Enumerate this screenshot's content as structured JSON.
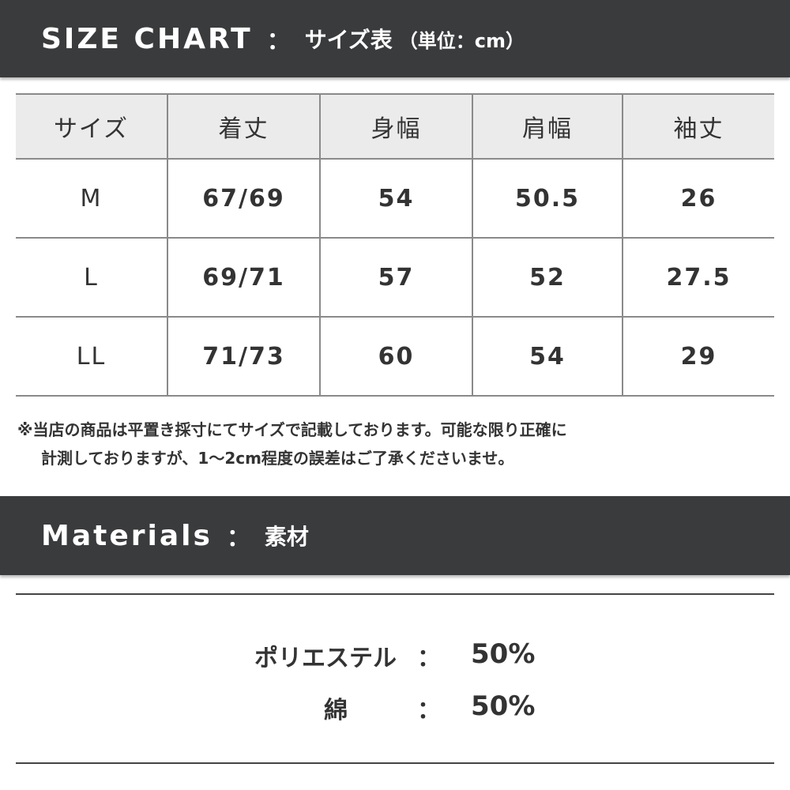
{
  "size_chart": {
    "title_en": "SIZE CHART",
    "colon": "：",
    "title_jp": "サイズ表",
    "unit": "（単位：cm）",
    "headers": [
      "サイズ",
      "着丈",
      "身幅",
      "肩幅",
      "袖丈"
    ],
    "rows": [
      [
        "M",
        "67/69",
        "54",
        "50.5",
        "26"
      ],
      [
        "L",
        "69/71",
        "57",
        "52",
        "27.5"
      ],
      [
        "LL",
        "71/73",
        "60",
        "54",
        "29"
      ]
    ]
  },
  "note": {
    "line1": "※当店の商品は平置き採寸にてサイズで記載しております。可能な限り正確に",
    "line2": "計測しておりますが、1～2cm程度の誤差はご了承くださいませ。"
  },
  "materials": {
    "title_en": "Materials",
    "colon": "：",
    "title_jp": "素材",
    "items": [
      {
        "name": "ポリエステル",
        "sep": "：",
        "value": "50%"
      },
      {
        "name": "綿",
        "sep": "：",
        "value": "50%"
      }
    ]
  }
}
